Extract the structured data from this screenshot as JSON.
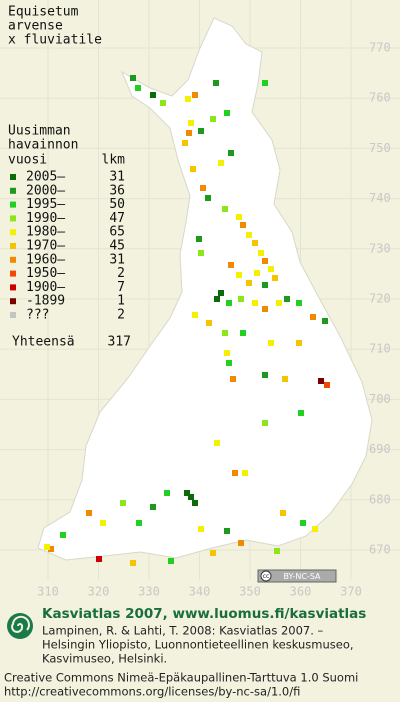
{
  "title": [
    "Equisetum",
    "arvense",
    "x fluviatile"
  ],
  "legend": {
    "heading": [
      "Uusimman",
      "havainnon",
      "vuosi"
    ],
    "count_heading": "lkm",
    "items": [
      {
        "label": "2005–",
        "count": 31,
        "color": "#0b6b0b"
      },
      {
        "label": "2000–",
        "count": 36,
        "color": "#1d9a1d"
      },
      {
        "label": "1995–",
        "count": 50,
        "color": "#22d022"
      },
      {
        "label": "1990–",
        "count": 47,
        "color": "#8ee61a"
      },
      {
        "label": "1980–",
        "count": 65,
        "color": "#f4f000"
      },
      {
        "label": "1970–",
        "count": 45,
        "color": "#f4c400"
      },
      {
        "label": "1960–",
        "count": 31,
        "color": "#f08a00"
      },
      {
        "label": "1950–",
        "count": 2,
        "color": "#f04800"
      },
      {
        "label": "1900–",
        "count": 7,
        "color": "#cc0000"
      },
      {
        "label": "-1899",
        "count": 1,
        "color": "#7a0000"
      },
      {
        "label": "???",
        "count": 2,
        "color": "#c4c4c4"
      }
    ],
    "total_label": "Yhteensä",
    "total": 317
  },
  "axes": {
    "y_labels": [
      "770",
      "760",
      "750",
      "740",
      "730",
      "720",
      "710",
      "700",
      "690",
      "680",
      "670"
    ],
    "x_labels": [
      "310",
      "320",
      "330",
      "340",
      "350",
      "360",
      "370"
    ]
  },
  "badge": "BY-NC-SA",
  "footer": {
    "heading": "Kasviatlas 2007, www.luomus.fi/kasviatlas",
    "citation": [
      "Lampinen, R. & Lahti, T. 2008: Kasviatlas 2007. –",
      "Helsingin Yliopisto, Luonnontieteellinen keskusmuseo,",
      "Kasvimuseo, Helsinki."
    ],
    "license": [
      "Creative Commons Nimeä-Epäkaupallinen-Tarttuva 1.0 Suomi",
      "http://creativecommons.org/licenses/by-nc-sa/1.0/fi"
    ]
  }
}
